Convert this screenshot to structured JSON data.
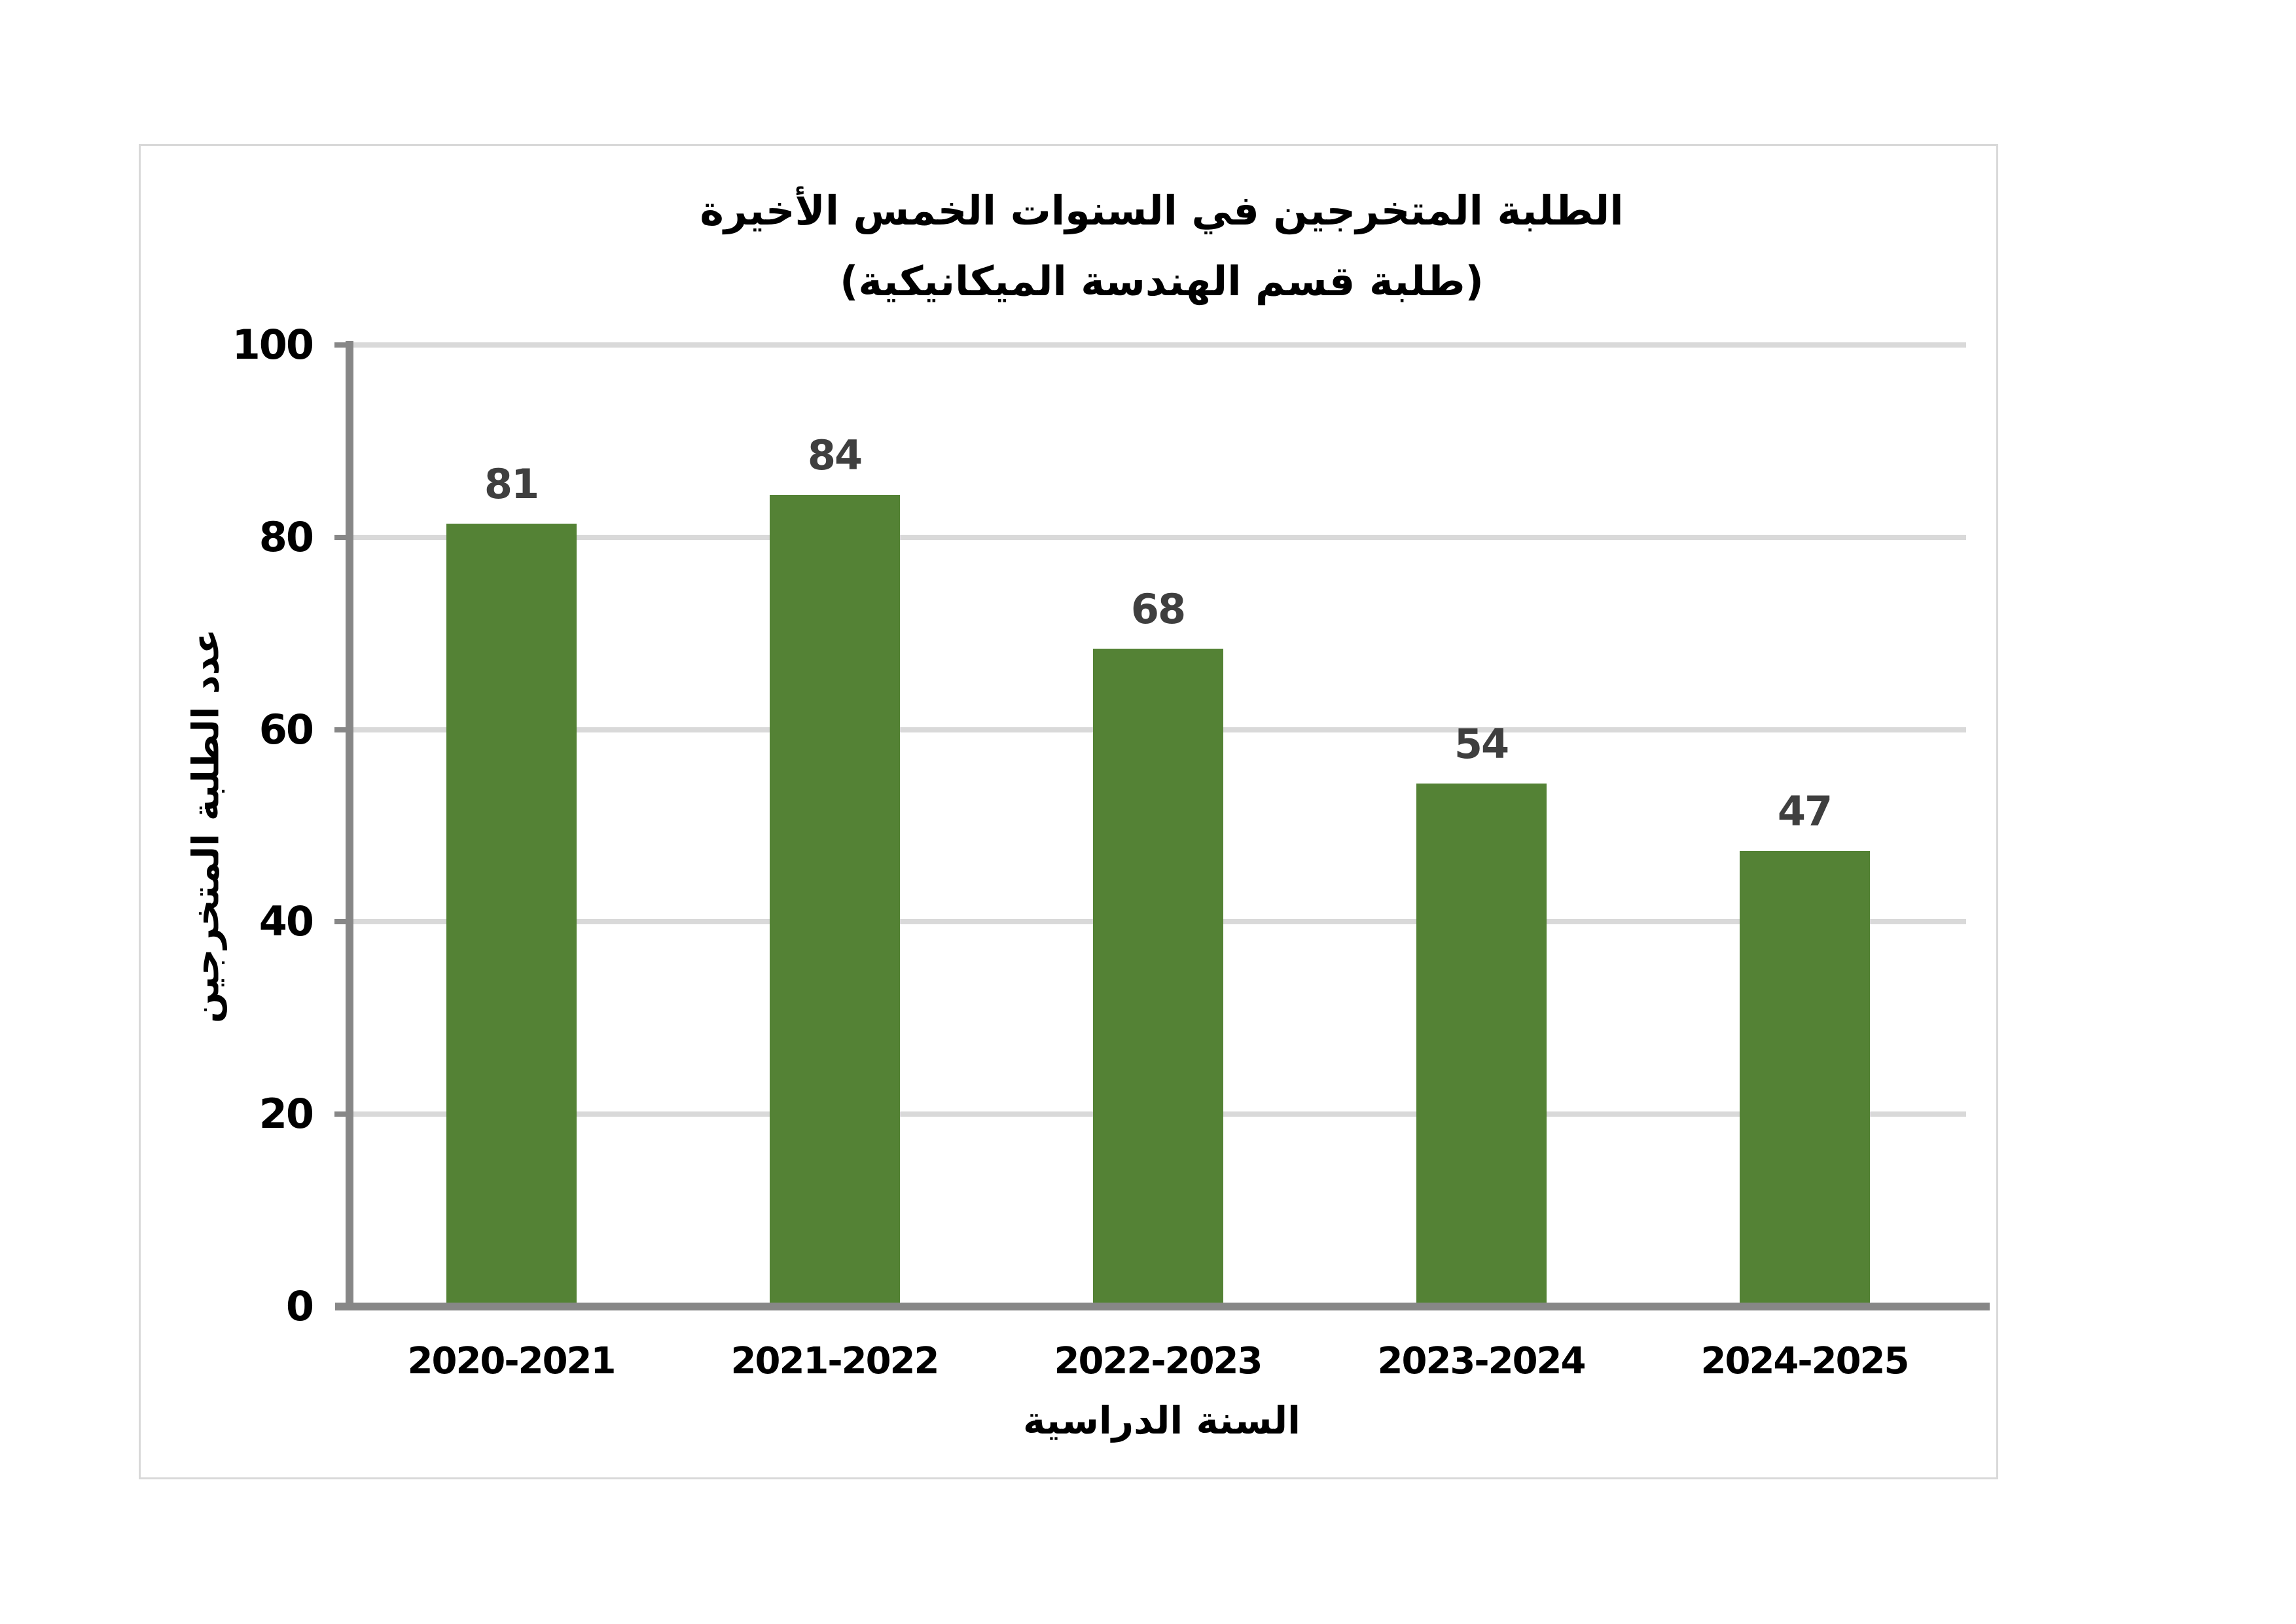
{
  "chart_data": {
    "type": "bar",
    "title_lines": [
      "الطلبة المتخرجين في السنوات الخمس الأخيرة",
      "(طلبة قسم الهندسة الميكانيكية)"
    ],
    "categories": [
      "2020-2021",
      "2021-2022",
      "2022-2023",
      "2023-2024",
      "2024-2025"
    ],
    "values": [
      81,
      84,
      68,
      54,
      47
    ],
    "data_labels": [
      "81",
      "84",
      "68",
      "54",
      "47"
    ],
    "xlabel": "السنة الدراسية",
    "ylabel": "عدد الطلبة المتخرجين",
    "ylim": [
      0,
      100
    ],
    "yticks": [
      0,
      20,
      40,
      60,
      80,
      100
    ],
    "grid": true,
    "legend_position": "none",
    "colors": {
      "bar": "#548235",
      "data_label": "#3f3f3f",
      "axis_line": "#878787",
      "gridline": "#d9d9d9",
      "chart_border": "#d9d9d9",
      "text": "#000000",
      "background": "#ffffff"
    }
  }
}
